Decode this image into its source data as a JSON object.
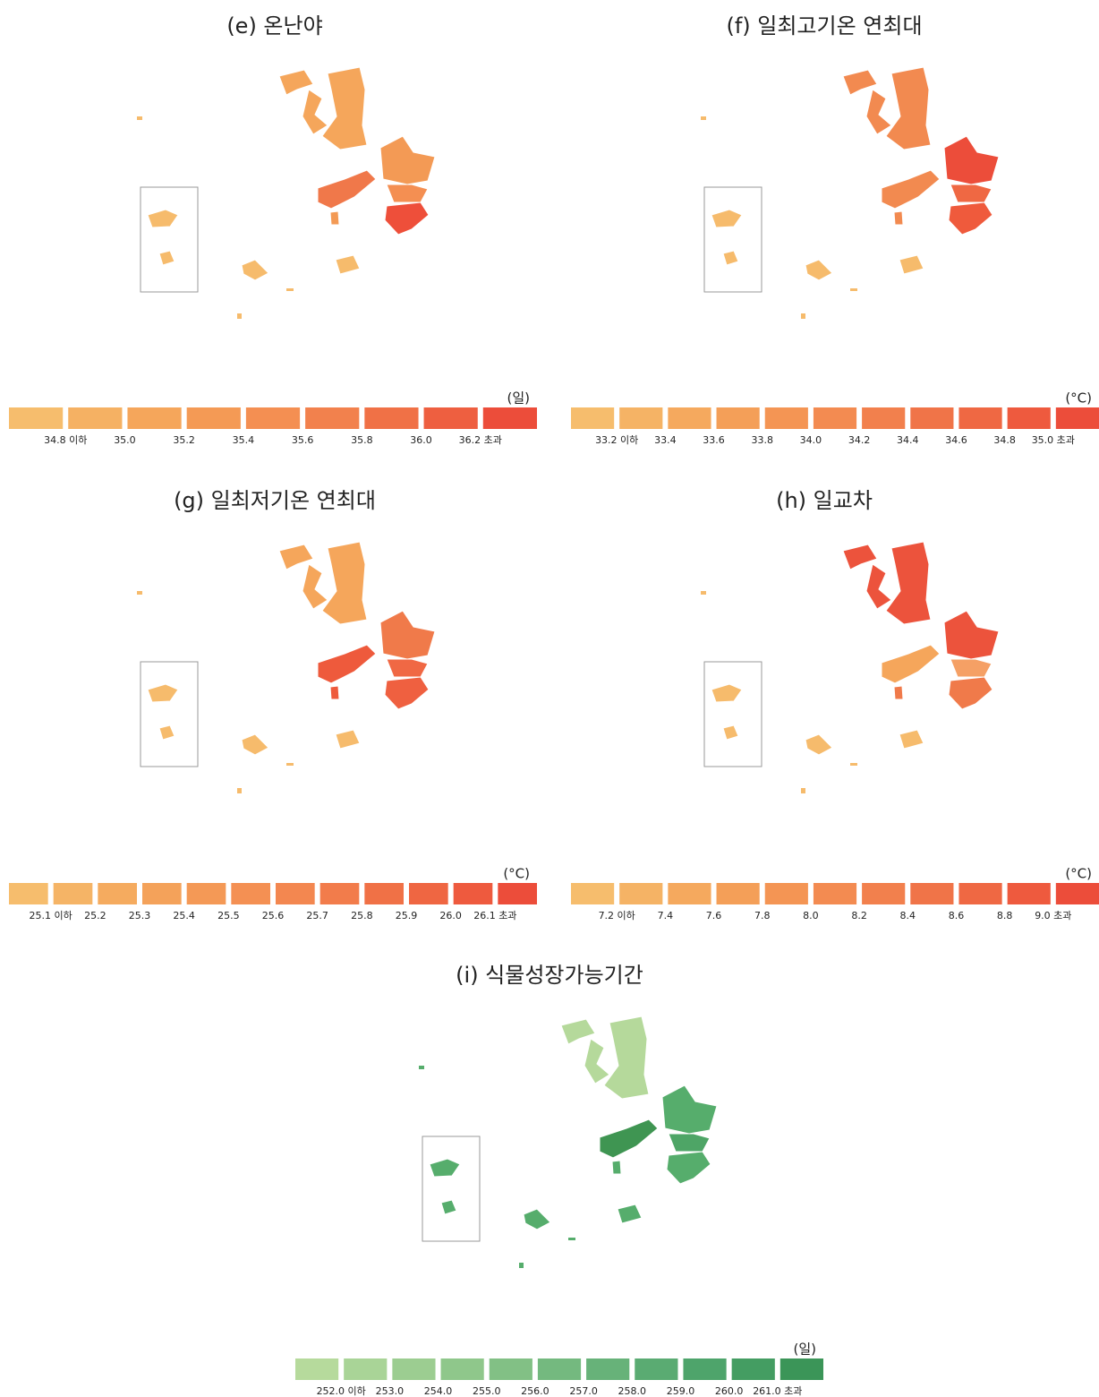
{
  "panels": [
    {
      "title": "(e) 온난야",
      "unit": "(일)",
      "legend_labels": [
        "34.8 이하",
        "35.0",
        "35.2",
        "35.4",
        "35.6",
        "35.8",
        "36.0",
        "36.2 초과"
      ],
      "legend_colors": [
        "#f6bd6d",
        "#f5b163",
        "#f5a65b",
        "#f49a55",
        "#f48f52",
        "#f2814d",
        "#f07146",
        "#ee5f40",
        "#ec4d3a"
      ],
      "region_colors": [
        "#f5a65b",
        "#f5a65b",
        "#f5a65b",
        "#f39a55",
        "#f48f52",
        "#ee4f3a",
        "#f0784a",
        "#f6bb6c",
        "#f6bb6c",
        "#f6bb6c",
        "#f39a55"
      ]
    },
    {
      "title": "(f) 일최고기온 연최대",
      "unit": "(°C)",
      "legend_labels": [
        "33.2 이하",
        "33.4",
        "33.6",
        "33.8",
        "34.0",
        "34.2",
        "34.4",
        "34.6",
        "34.8",
        "35.0 초과"
      ],
      "legend_colors": [
        "#f6bd6d",
        "#f5b365",
        "#f5a95e",
        "#f49f58",
        "#f49554",
        "#f38b51",
        "#f2804d",
        "#f07448",
        "#ef6843",
        "#ee5a3e",
        "#ec4d3a"
      ],
      "region_colors": [
        "#f28a50",
        "#f28a50",
        "#f28a50",
        "#ec4d3a",
        "#ef6843",
        "#ef5a3c",
        "#f28a50",
        "#f6bb6c",
        "#f6bb6c",
        "#f6bb6c",
        "#f28a50"
      ]
    },
    {
      "title": "(g) 일최저기온 연최대",
      "unit": "(°C)",
      "legend_labels": [
        "25.1 이하",
        "25.2",
        "25.3",
        "25.4",
        "25.5",
        "25.6",
        "25.7",
        "25.8",
        "25.9",
        "26.0",
        "26.1 초과"
      ],
      "legend_colors": [
        "#f6bd6d",
        "#f5b466",
        "#f5ab5f",
        "#f4a25a",
        "#f49956",
        "#f49053",
        "#f38750",
        "#f27c4b",
        "#f07146",
        "#ef6642",
        "#ee5a3e",
        "#ec4d3a"
      ],
      "region_colors": [
        "#f5a65b",
        "#f5a65b",
        "#f5a65b",
        "#f07a4a",
        "#f06844",
        "#ef6040",
        "#ee5a3c",
        "#f6bb6c",
        "#f6bb6c",
        "#f6bb6c",
        "#ee5a3c"
      ]
    },
    {
      "title": "(h) 일교차",
      "unit": "(°C)",
      "legend_labels": [
        "7.2 이하",
        "7.4",
        "7.6",
        "7.8",
        "8.0",
        "8.2",
        "8.4",
        "8.6",
        "8.8",
        "9.0 초과"
      ],
      "legend_colors": [
        "#f6bd6d",
        "#f5b365",
        "#f5a95e",
        "#f49f58",
        "#f49554",
        "#f38b51",
        "#f2804d",
        "#f07448",
        "#ef6843",
        "#ee5a3e",
        "#ec4d3a"
      ],
      "region_colors": [
        "#ec533c",
        "#ec533c",
        "#ec533c",
        "#ec533c",
        "#f5a065",
        "#f07a4a",
        "#f5a65b",
        "#f6bb6c",
        "#f6bb6c",
        "#f6bb6c",
        "#f07a4a"
      ]
    },
    {
      "title": "(i) 식물성장가능기간",
      "unit": "(일)",
      "legend_labels": [
        "252.0 이하",
        "253.0",
        "254.0",
        "255.0",
        "256.0",
        "257.0",
        "258.0",
        "259.0",
        "260.0",
        "261.0 초과"
      ],
      "legend_colors": [
        "#b6da9c",
        "#a9d497",
        "#9ccd91",
        "#8fc78b",
        "#82c085",
        "#74b97f",
        "#67b279",
        "#5aab72",
        "#4ea46b",
        "#449d62",
        "#3b9558"
      ],
      "region_colors": [
        "#b5d99b",
        "#b5d99b",
        "#b5d99b",
        "#56ad6c",
        "#4ea566",
        "#56ad6c",
        "#3f9552",
        "#56ad6c",
        "#56ad6c",
        "#56ad6c",
        "#56ad6c"
      ]
    }
  ]
}
